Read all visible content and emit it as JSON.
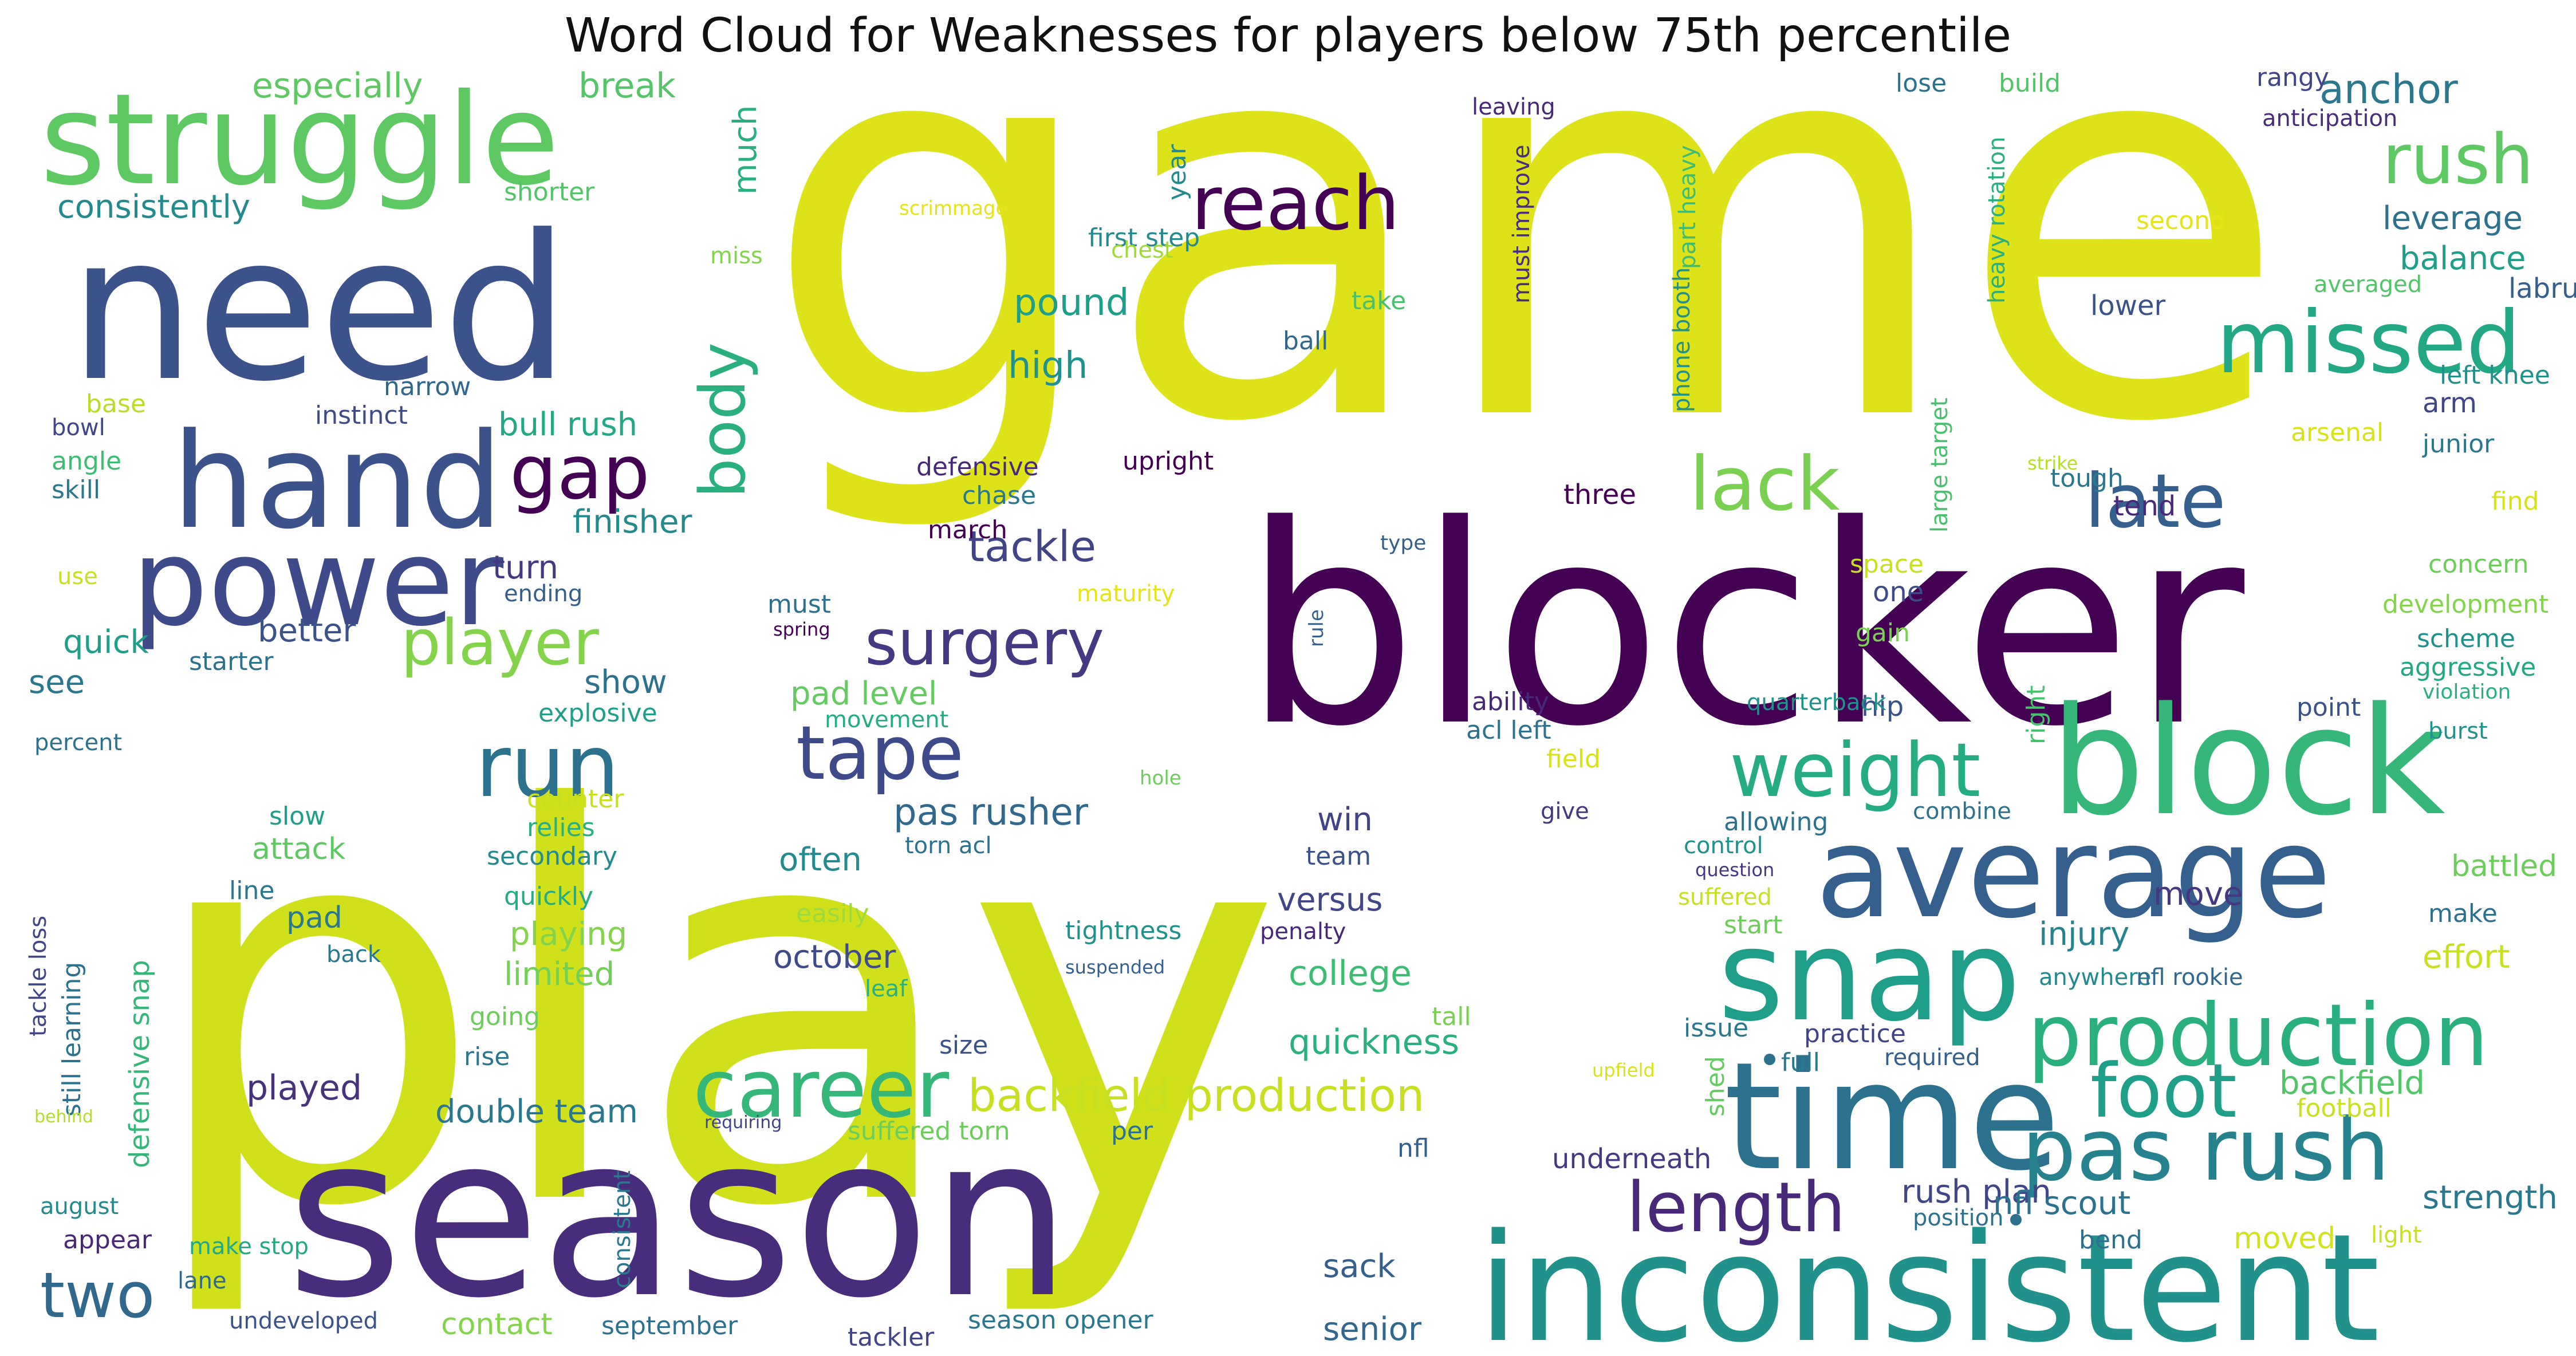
{
  "chart_data": {
    "type": "wordcloud",
    "title": "Word Cloud for Weaknesses for players below 75th percentile",
    "words": [
      {
        "text": "game",
        "weight": 1.0,
        "color": "#dde318"
      },
      {
        "text": "play",
        "weight": 0.97,
        "color": "#d0e11c"
      },
      {
        "text": "blocker",
        "weight": 0.72,
        "color": "#440154"
      },
      {
        "text": "season",
        "weight": 0.68,
        "color": "#472d7b"
      },
      {
        "text": "need",
        "weight": 0.62,
        "color": "#3b528b"
      },
      {
        "text": "inconsistent",
        "weight": 0.5,
        "color": "#21918c"
      },
      {
        "text": "average",
        "weight": 0.45,
        "color": "#355f8d"
      },
      {
        "text": "block",
        "weight": 0.44,
        "color": "#35b779"
      },
      {
        "text": "time",
        "weight": 0.42,
        "color": "#2c728e"
      },
      {
        "text": "struggle",
        "weight": 0.4,
        "color": "#5ec962"
      },
      {
        "text": "hand",
        "weight": 0.38,
        "color": "#3b528b"
      },
      {
        "text": "snap",
        "weight": 0.36,
        "color": "#1f9e89"
      },
      {
        "text": "power",
        "weight": 0.34,
        "color": "#3e4a89"
      },
      {
        "text": "production",
        "weight": 0.3,
        "color": "#2ab07f"
      },
      {
        "text": "pas rush",
        "weight": 0.28,
        "color": "#26828e"
      },
      {
        "text": "missed",
        "weight": 0.26,
        "color": "#22a884"
      },
      {
        "text": "career",
        "weight": 0.25,
        "color": "#35b779"
      },
      {
        "text": "run",
        "weight": 0.24,
        "color": "#2c728e"
      },
      {
        "text": "weight",
        "weight": 0.24,
        "color": "#25ac82"
      },
      {
        "text": "reach",
        "weight": 0.22,
        "color": "#440154"
      },
      {
        "text": "tape",
        "weight": 0.22,
        "color": "#3e4a89"
      },
      {
        "text": "surgery",
        "weight": 0.22,
        "color": "#443983"
      },
      {
        "text": "lack",
        "weight": 0.22,
        "color": "#7ad151"
      },
      {
        "text": "late",
        "weight": 0.22,
        "color": "#355f8d"
      },
      {
        "text": "foot",
        "weight": 0.22,
        "color": "#1f9e89"
      },
      {
        "text": "length",
        "weight": 0.2,
        "color": "#482878"
      },
      {
        "text": "rush",
        "weight": 0.2,
        "color": "#5ec962"
      },
      {
        "text": "player",
        "weight": 0.2,
        "color": "#84d44b"
      },
      {
        "text": "body",
        "weight": 0.2,
        "color": "#2ab07f"
      },
      {
        "text": "gap",
        "weight": 0.2,
        "color": "#440154"
      },
      {
        "text": "two",
        "weight": 0.19,
        "color": "#31688e"
      },
      {
        "text": "backfield production",
        "weight": 0.13,
        "color": "#c8e020"
      },
      {
        "text": "anchor",
        "weight": 0.12,
        "color": "#2a788e"
      },
      {
        "text": "tackle",
        "weight": 0.12,
        "color": "#414487"
      },
      {
        "text": "pas rusher",
        "weight": 0.12,
        "color": "#31688e"
      },
      {
        "text": "break",
        "weight": 0.11,
        "color": "#54c568"
      },
      {
        "text": "especially",
        "weight": 0.11,
        "color": "#5ec962"
      },
      {
        "text": "consistently",
        "weight": 0.11,
        "color": "#238a8d"
      },
      {
        "text": "leverage",
        "weight": 0.11,
        "color": "#2c728e"
      },
      {
        "text": "balance",
        "weight": 0.11,
        "color": "#1f9e89"
      },
      {
        "text": "pound",
        "weight": 0.11,
        "color": "#1f9e89"
      },
      {
        "text": "high",
        "weight": 0.11,
        "color": "#21918c"
      },
      {
        "text": "much",
        "weight": 0.11,
        "color": "#2ab07f"
      },
      {
        "text": "bull rush",
        "weight": 0.11,
        "color": "#22a884"
      },
      {
        "text": "finisher",
        "weight": 0.11,
        "color": "#238a8d"
      },
      {
        "text": "better",
        "weight": 0.11,
        "color": "#3b528b"
      },
      {
        "text": "turn",
        "weight": 0.11,
        "color": "#443983"
      },
      {
        "text": "quick",
        "weight": 0.11,
        "color": "#1f9e89"
      },
      {
        "text": "see",
        "weight": 0.11,
        "color": "#2a788e"
      },
      {
        "text": "show",
        "weight": 0.11,
        "color": "#2c728e"
      },
      {
        "text": "often",
        "weight": 0.11,
        "color": "#238a8d"
      },
      {
        "text": "attack",
        "weight": 0.11,
        "color": "#5ec962"
      },
      {
        "text": "win",
        "weight": 0.11,
        "color": "#414487"
      },
      {
        "text": "versus",
        "weight": 0.11,
        "color": "#404688"
      },
      {
        "text": "playing",
        "weight": 0.11,
        "color": "#84d44b"
      },
      {
        "text": "limited",
        "weight": 0.11,
        "color": "#73d056"
      },
      {
        "text": "pad level",
        "weight": 0.11,
        "color": "#63cb5f"
      },
      {
        "text": "pad",
        "weight": 0.11,
        "color": "#2a788e"
      },
      {
        "text": "october",
        "weight": 0.11,
        "color": "#3e4a89"
      },
      {
        "text": "college",
        "weight": 0.11,
        "color": "#3dbc74"
      },
      {
        "text": "quickness",
        "weight": 0.11,
        "color": "#2ab07f"
      },
      {
        "text": "played",
        "weight": 0.11,
        "color": "#46337e"
      },
      {
        "text": "double team",
        "weight": 0.11,
        "color": "#2a788e"
      },
      {
        "text": "injury",
        "weight": 0.11,
        "color": "#26828e"
      },
      {
        "text": "move",
        "weight": 0.11,
        "color": "#453781"
      },
      {
        "text": "effort",
        "weight": 0.11,
        "color": "#c8e020"
      },
      {
        "text": "backfield",
        "weight": 0.11,
        "color": "#52c569"
      },
      {
        "text": "rush plan",
        "weight": 0.11,
        "color": "#404688"
      },
      {
        "text": "nfl scout",
        "weight": 0.11,
        "color": "#2c728e"
      },
      {
        "text": "strength",
        "weight": 0.11,
        "color": "#2a788e"
      },
      {
        "text": "moved",
        "weight": 0.11,
        "color": "#d2e21b"
      },
      {
        "text": "sack",
        "weight": 0.11,
        "color": "#355f8d"
      },
      {
        "text": "senior",
        "weight": 0.11,
        "color": "#31688e"
      },
      {
        "text": "contact",
        "weight": 0.11,
        "color": "#84d44b"
      },
      {
        "text": "battled",
        "weight": 0.11,
        "color": "#6ccd5a"
      },
      {
        "text": "underneath",
        "weight": 0.1,
        "color": "#443983"
      },
      {
        "text": "hip",
        "weight": 0.1,
        "color": "#3b528b"
      },
      {
        "text": "right",
        "weight": 0.1,
        "color": "#48c16e"
      },
      {
        "text": "one",
        "weight": 0.1,
        "color": "#3e4a89"
      },
      {
        "text": "three",
        "weight": 0.1,
        "color": "#440154"
      },
      {
        "text": "tend",
        "weight": 0.1,
        "color": "#482878"
      },
      {
        "text": "arm",
        "weight": 0.1,
        "color": "#404688"
      },
      {
        "text": "lower",
        "weight": 0.1,
        "color": "#3b528b"
      },
      {
        "text": "labrum",
        "weight": 0.1,
        "color": "#355f8d"
      },
      {
        "text": "year",
        "weight": 0.09,
        "color": "#238a8d"
      },
      {
        "text": "shed",
        "weight": 0.09,
        "color": "#63cb5f"
      },
      {
        "text": "build",
        "weight": 0.08,
        "color": "#52c569"
      },
      {
        "text": "lose",
        "weight": 0.08,
        "color": "#2c728e"
      },
      {
        "text": "rangy",
        "weight": 0.08,
        "color": "#404688"
      },
      {
        "text": "anticipation",
        "weight": 0.08,
        "color": "#472d7b"
      },
      {
        "text": "leaving",
        "weight": 0.08,
        "color": "#482878"
      },
      {
        "text": "must improve",
        "weight": 0.08,
        "color": "#472d7b"
      },
      {
        "text": "part heavy",
        "weight": 0.08,
        "color": "#3dbc74"
      },
      {
        "text": "heavy rotation",
        "weight": 0.08,
        "color": "#2ab07f"
      },
      {
        "text": "second",
        "weight": 0.08,
        "color": "#e5e419"
      },
      {
        "text": "shorter",
        "weight": 0.08,
        "color": "#52c569"
      },
      {
        "text": "scrimmage",
        "weight": 0.07,
        "color": "#e5e419"
      },
      {
        "text": "first step",
        "weight": 0.08,
        "color": "#238a8d"
      },
      {
        "text": "miss",
        "weight": 0.08,
        "color": "#84d44b"
      },
      {
        "text": "take",
        "weight": 0.08,
        "color": "#48c16e"
      },
      {
        "text": "chest",
        "weight": 0.08,
        "color": "#a0da39"
      },
      {
        "text": "ball",
        "weight": 0.08,
        "color": "#31688e"
      },
      {
        "text": "averaged",
        "weight": 0.08,
        "color": "#52c569"
      },
      {
        "text": "left knee",
        "weight": 0.08,
        "color": "#21918c"
      },
      {
        "text": "phone booth",
        "weight": 0.08,
        "color": "#21918c"
      },
      {
        "text": "large target",
        "weight": 0.08,
        "color": "#48c16e"
      },
      {
        "text": "base",
        "weight": 0.08,
        "color": "#bade28"
      },
      {
        "text": "narrow",
        "weight": 0.08,
        "color": "#31688e"
      },
      {
        "text": "instinct",
        "weight": 0.08,
        "color": "#3e4a89"
      },
      {
        "text": "bowl",
        "weight": 0.08,
        "color": "#404688"
      },
      {
        "text": "angle",
        "weight": 0.08,
        "color": "#3dbc74"
      },
      {
        "text": "skill",
        "weight": 0.08,
        "color": "#2a788e"
      },
      {
        "text": "defensive",
        "weight": 0.08,
        "color": "#482878"
      },
      {
        "text": "chase",
        "weight": 0.08,
        "color": "#2a788e"
      },
      {
        "text": "march",
        "weight": 0.08,
        "color": "#440154"
      },
      {
        "text": "upright",
        "weight": 0.08,
        "color": "#440154"
      },
      {
        "text": "strike",
        "weight": 0.07,
        "color": "#b5de2b"
      },
      {
        "text": "arsenal",
        "weight": 0.08,
        "color": "#d8e219"
      },
      {
        "text": "junior",
        "weight": 0.08,
        "color": "#2a788e"
      },
      {
        "text": "tough",
        "weight": 0.08,
        "color": "#2a788e"
      },
      {
        "text": "find",
        "weight": 0.08,
        "color": "#d8e219"
      },
      {
        "text": "use",
        "weight": 0.08,
        "color": "#c8e020"
      },
      {
        "text": "ending",
        "weight": 0.08,
        "color": "#355f8d"
      },
      {
        "text": "type",
        "weight": 0.07,
        "color": "#355f8d"
      },
      {
        "text": "rule",
        "weight": 0.07,
        "color": "#355f8d"
      },
      {
        "text": "concern",
        "weight": 0.08,
        "color": "#6ccd5a"
      },
      {
        "text": "development",
        "weight": 0.08,
        "color": "#84d44b"
      },
      {
        "text": "scheme",
        "weight": 0.08,
        "color": "#21918c"
      },
      {
        "text": "aggressive",
        "weight": 0.08,
        "color": "#22a884"
      },
      {
        "text": "violation",
        "weight": 0.07,
        "color": "#2ab07f"
      },
      {
        "text": "maturity",
        "weight": 0.08,
        "color": "#e5e419"
      },
      {
        "text": "spring",
        "weight": 0.07,
        "color": "#440154"
      },
      {
        "text": "must",
        "weight": 0.08,
        "color": "#2c728e"
      },
      {
        "text": "space",
        "weight": 0.08,
        "color": "#c8e020"
      },
      {
        "text": "gain",
        "weight": 0.08,
        "color": "#7ad151"
      },
      {
        "text": "starter",
        "weight": 0.08,
        "color": "#2c728e"
      },
      {
        "text": "explosive",
        "weight": 0.08,
        "color": "#1f9e89"
      },
      {
        "text": "movement",
        "weight": 0.08,
        "color": "#25ac82"
      },
      {
        "text": "ability",
        "weight": 0.08,
        "color": "#482878"
      },
      {
        "text": "acl left",
        "weight": 0.08,
        "color": "#2c728e"
      },
      {
        "text": "quarterback",
        "weight": 0.08,
        "color": "#21918c"
      },
      {
        "text": "point",
        "weight": 0.08,
        "color": "#3b528b"
      },
      {
        "text": "burst",
        "weight": 0.08,
        "color": "#21918c"
      },
      {
        "text": "percent",
        "weight": 0.08,
        "color": "#2c728e"
      },
      {
        "text": "field",
        "weight": 0.08,
        "color": "#d8e219"
      },
      {
        "text": "hole",
        "weight": 0.07,
        "color": "#6ccd5a"
      },
      {
        "text": "counter",
        "weight": 0.08,
        "color": "#c8e020"
      },
      {
        "text": "relies",
        "weight": 0.08,
        "color": "#2ab07f"
      },
      {
        "text": "secondary",
        "weight": 0.08,
        "color": "#238a8d"
      },
      {
        "text": "slow",
        "weight": 0.08,
        "color": "#1f9e89"
      },
      {
        "text": "give",
        "weight": 0.08,
        "color": "#453781"
      },
      {
        "text": "allowing",
        "weight": 0.08,
        "color": "#2c728e"
      },
      {
        "text": "combine",
        "weight": 0.08,
        "color": "#2c728e"
      },
      {
        "text": "torn acl",
        "weight": 0.08,
        "color": "#2c728e"
      },
      {
        "text": "control",
        "weight": 0.08,
        "color": "#21918c"
      },
      {
        "text": "question",
        "weight": 0.07,
        "color": "#453781"
      },
      {
        "text": "team",
        "weight": 0.08,
        "color": "#3b528b"
      },
      {
        "text": "suffered",
        "weight": 0.08,
        "color": "#c8e020"
      },
      {
        "text": "start",
        "weight": 0.08,
        "color": "#6ccd5a"
      },
      {
        "text": "make",
        "weight": 0.08,
        "color": "#2c728e"
      },
      {
        "text": "line",
        "weight": 0.08,
        "color": "#2a788e"
      },
      {
        "text": "quickly",
        "weight": 0.08,
        "color": "#25ac82"
      },
      {
        "text": "easily",
        "weight": 0.08,
        "color": "#a0da39"
      },
      {
        "text": "tightness",
        "weight": 0.08,
        "color": "#21918c"
      },
      {
        "text": "penalty",
        "weight": 0.08,
        "color": "#482878"
      },
      {
        "text": "back",
        "weight": 0.08,
        "color": "#2a788e"
      },
      {
        "text": "suspended",
        "weight": 0.07,
        "color": "#355f8d"
      },
      {
        "text": "anywhere",
        "weight": 0.08,
        "color": "#238a8d"
      },
      {
        "text": "nfl rookie",
        "weight": 0.08,
        "color": "#31688e"
      },
      {
        "text": "going",
        "weight": 0.08,
        "color": "#6ccd5a"
      },
      {
        "text": "leaf",
        "weight": 0.08,
        "color": "#2ab07f"
      },
      {
        "text": "tall",
        "weight": 0.08,
        "color": "#7ad151"
      },
      {
        "text": "issue",
        "weight": 0.08,
        "color": "#2a788e"
      },
      {
        "text": "practice",
        "weight": 0.08,
        "color": "#414487"
      },
      {
        "text": "rise",
        "weight": 0.08,
        "color": "#2a788e"
      },
      {
        "text": "size",
        "weight": 0.08,
        "color": "#3b528b"
      },
      {
        "text": "full",
        "weight": 0.08,
        "color": "#2a788e"
      },
      {
        "text": "required",
        "weight": 0.08,
        "color": "#355f8d"
      },
      {
        "text": "tackle loss",
        "weight": 0.08,
        "color": "#404688"
      },
      {
        "text": "still learning",
        "weight": 0.08,
        "color": "#2c728e"
      },
      {
        "text": "defensive snap",
        "weight": 0.08,
        "color": "#35b779"
      },
      {
        "text": "behind",
        "weight": 0.07,
        "color": "#b5de2b"
      },
      {
        "text": "suffered torn",
        "weight": 0.08,
        "color": "#6ccd5a"
      },
      {
        "text": "requiring",
        "weight": 0.07,
        "color": "#414487"
      },
      {
        "text": "upfield",
        "weight": 0.07,
        "color": "#d8e219"
      },
      {
        "text": "per",
        "weight": 0.08,
        "color": "#2c728e"
      },
      {
        "text": "football",
        "weight": 0.08,
        "color": "#c8e020"
      },
      {
        "text": "nfl",
        "weight": 0.08,
        "color": "#355f8d"
      },
      {
        "text": "consistent",
        "weight": 0.08,
        "color": "#2a788e"
      },
      {
        "text": "position",
        "weight": 0.08,
        "color": "#2c728e"
      },
      {
        "text": "bend",
        "weight": 0.08,
        "color": "#2c728e"
      },
      {
        "text": "light",
        "weight": 0.08,
        "color": "#c8e020"
      },
      {
        "text": "august",
        "weight": 0.08,
        "color": "#238a8d"
      },
      {
        "text": "appear",
        "weight": 0.08,
        "color": "#482878"
      },
      {
        "text": "make stop",
        "weight": 0.08,
        "color": "#22a884"
      },
      {
        "text": "lane",
        "weight": 0.08,
        "color": "#31688e"
      },
      {
        "text": "undeveloped",
        "weight": 0.08,
        "color": "#3b528b"
      },
      {
        "text": "september",
        "weight": 0.08,
        "color": "#2c728e"
      },
      {
        "text": "tackler",
        "weight": 0.08,
        "color": "#414487"
      },
      {
        "text": "season opener",
        "weight": 0.08,
        "color": "#2a788e"
      }
    ]
  }
}
